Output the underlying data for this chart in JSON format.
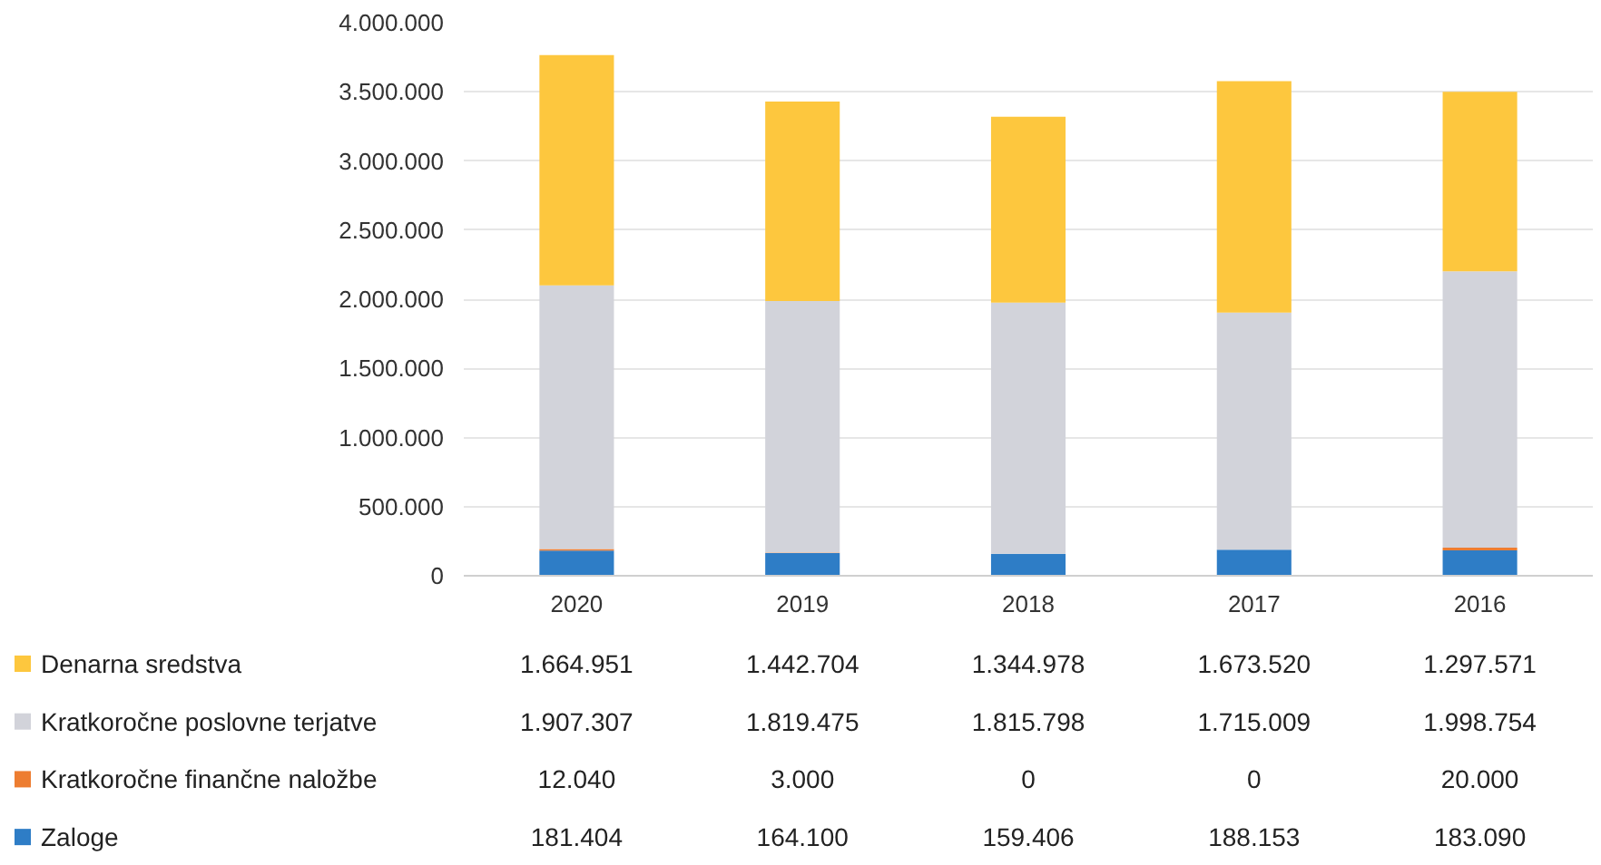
{
  "chart_data": {
    "type": "bar",
    "stacked": true,
    "categories": [
      "2020",
      "2019",
      "2018",
      "2017",
      "2016"
    ],
    "series": [
      {
        "name": "Zaloge",
        "color": "#2e7dc6",
        "values": [
          181404,
          164100,
          159406,
          188153,
          183090
        ],
        "value_labels": [
          "181.404",
          "164.100",
          "159.406",
          "188.153",
          "183.090"
        ]
      },
      {
        "name": "Kratkoročne finančne naložbe",
        "color": "#ed7d31",
        "values": [
          12040,
          3000,
          0,
          0,
          20000
        ],
        "value_labels": [
          "12.040",
          "3.000",
          "0",
          "0",
          "20.000"
        ]
      },
      {
        "name": "Kratkoročne poslovne terjatve",
        "color": "#d2d3da",
        "values": [
          1907307,
          1819475,
          1815798,
          1715009,
          1998754
        ],
        "value_labels": [
          "1.907.307",
          "1.819.475",
          "1.815.798",
          "1.715.009",
          "1.998.754"
        ]
      },
      {
        "name": "Denarna sredstva",
        "color": "#fdc73e",
        "values": [
          1664951,
          1442704,
          1344978,
          1673520,
          1297571
        ],
        "value_labels": [
          "1.664.951",
          "1.442.704",
          "1.344.978",
          "1.673.520",
          "1.297.571"
        ]
      }
    ],
    "ylim": [
      0,
      4000000
    ],
    "yticks": [
      {
        "value": 0,
        "label": "0"
      },
      {
        "value": 500000,
        "label": "500.000"
      },
      {
        "value": 1000000,
        "label": "1.000.000"
      },
      {
        "value": 1500000,
        "label": "1.500.000"
      },
      {
        "value": 2000000,
        "label": "2.000.000"
      },
      {
        "value": 2500000,
        "label": "2.500.000"
      },
      {
        "value": 3000000,
        "label": "3.000.000"
      },
      {
        "value": 3500000,
        "label": "3.500.000"
      },
      {
        "value": 4000000,
        "label": "4.000.000"
      }
    ],
    "grid": "y",
    "legend": "bottom"
  }
}
